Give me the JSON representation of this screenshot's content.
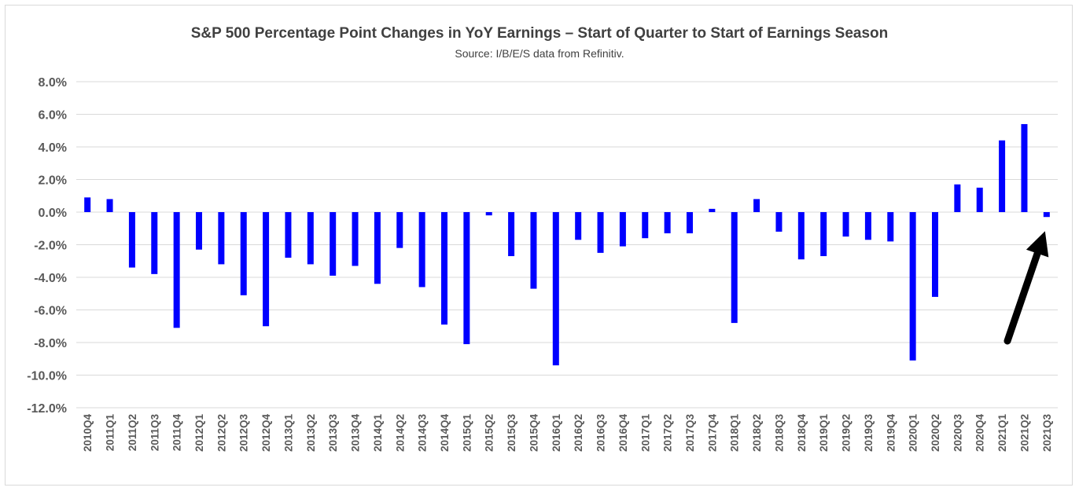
{
  "chart_data": {
    "type": "bar",
    "title": "S&P 500 Percentage Point Changes in YoY Earnings – Start of Quarter to Start of Earnings Season",
    "subtitle": "Source: I/B/E/S data from Refinitiv.",
    "xlabel": "",
    "ylabel": "",
    "ylim": [
      -12,
      8
    ],
    "yticks": [
      8,
      6,
      4,
      2,
      0,
      -2,
      -4,
      -6,
      -8,
      -10,
      -12
    ],
    "ytick_labels": [
      "8.0%",
      "6.0%",
      "4.0%",
      "2.0%",
      "0.0%",
      "-2.0%",
      "-4.0%",
      "-6.0%",
      "-8.0%",
      "-10.0%",
      "-12.0%"
    ],
    "grid": true,
    "legend": "none",
    "bar_color": "#0000ff",
    "categories": [
      "2010Q4",
      "2011Q1",
      "2011Q2",
      "2011Q3",
      "2011Q4",
      "2012Q1",
      "2012Q2",
      "2012Q3",
      "2012Q4",
      "2013Q1",
      "2013Q2",
      "2013Q3",
      "2013Q4",
      "2014Q1",
      "2014Q2",
      "2014Q3",
      "2014Q4",
      "2015Q1",
      "2015Q2",
      "2015Q3",
      "2015Q4",
      "2016Q1",
      "2016Q2",
      "2016Q3",
      "2016Q4",
      "2017Q1",
      "2017Q2",
      "2017Q3",
      "2017Q4",
      "2018Q1",
      "2018Q2",
      "2018Q3",
      "2018Q4",
      "2019Q1",
      "2019Q2",
      "2019Q3",
      "2019Q4",
      "2020Q1",
      "2020Q2",
      "2020Q3",
      "2020Q4",
      "2021Q1",
      "2021Q2",
      "2021Q3"
    ],
    "values": [
      0.9,
      0.8,
      -3.4,
      -3.8,
      -7.1,
      -2.3,
      -3.2,
      -5.1,
      -7.0,
      -2.8,
      -3.2,
      -3.9,
      -3.3,
      -4.4,
      -2.2,
      -4.6,
      -6.9,
      -8.1,
      -0.2,
      -2.7,
      -4.7,
      -9.4,
      -1.7,
      -2.5,
      -2.1,
      -1.6,
      -1.3,
      -1.3,
      0.2,
      -6.8,
      0.8,
      -1.2,
      -2.9,
      -2.7,
      -1.5,
      -1.7,
      -1.8,
      -9.1,
      -5.2,
      1.7,
      1.5,
      4.4,
      5.4,
      -0.3
    ],
    "annotations": [
      {
        "type": "arrow",
        "points_to": "2021Q3",
        "color": "#000000"
      }
    ]
  }
}
